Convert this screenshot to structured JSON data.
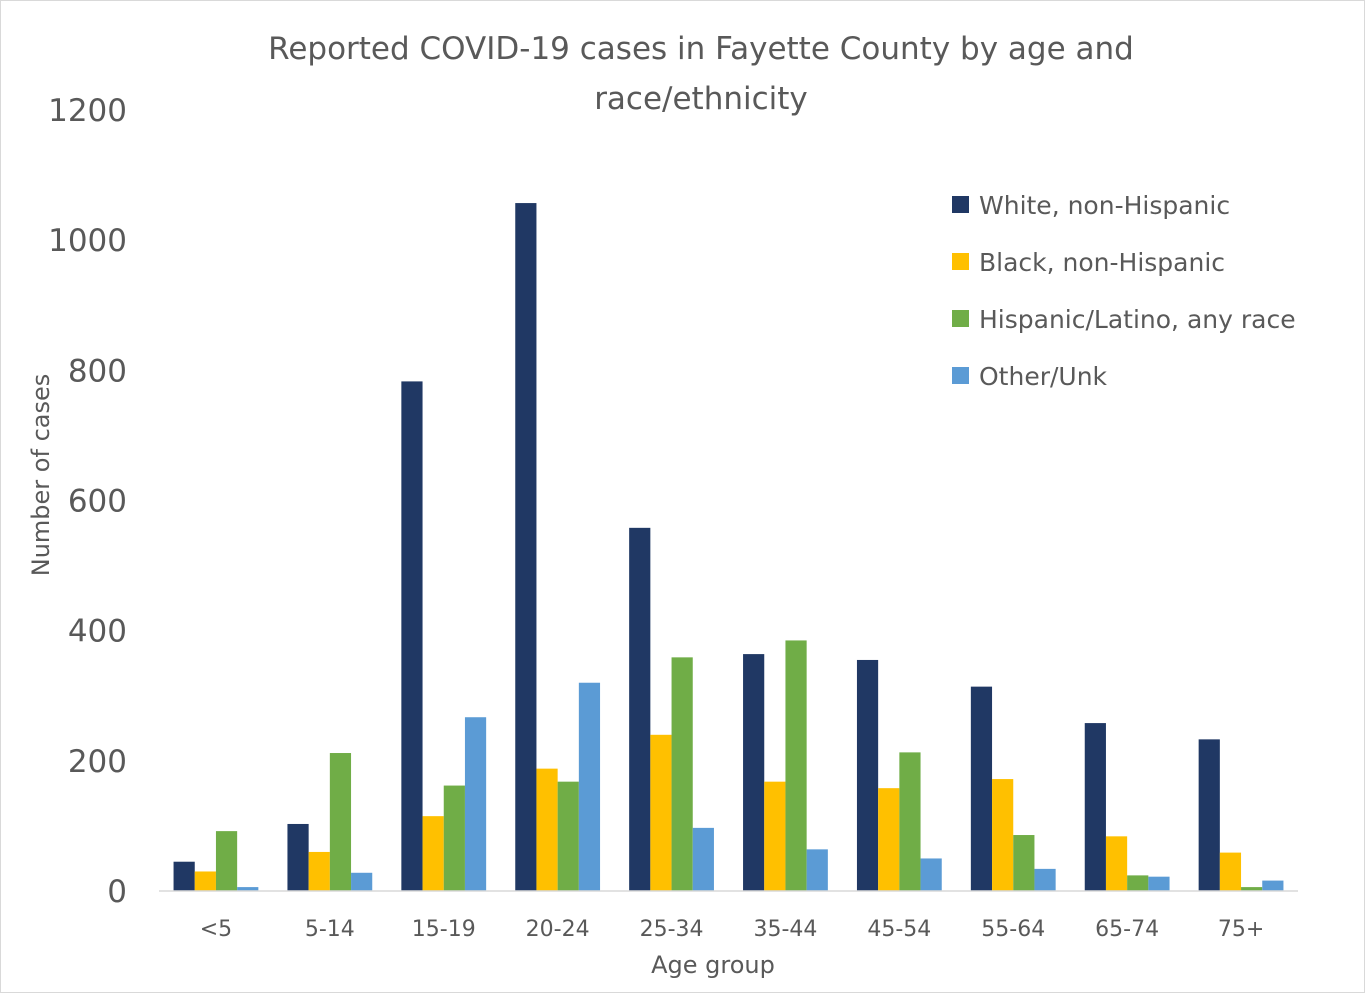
{
  "chart_data": {
    "type": "bar",
    "title_lines": [
      "Reported COVID-19 cases in Fayette County by age and",
      "race/ethnicity"
    ],
    "xlabel": "Age group",
    "ylabel": "Number of cases",
    "ylim": [
      0,
      1200
    ],
    "yticks": [
      "0",
      "200",
      "400",
      "600",
      "800",
      "1000",
      "1200"
    ],
    "grid": false,
    "legend_position": "top-right",
    "categories": [
      "<5",
      "5-14",
      "15-19",
      "20-24",
      "25-34",
      "35-44",
      "45-54",
      "55-64",
      "65-74",
      "75+"
    ],
    "series": [
      {
        "name": "White, non-Hispanic",
        "color": "#203864",
        "values": [
          45,
          103,
          783,
          1057,
          558,
          364,
          355,
          314,
          258,
          233
        ]
      },
      {
        "name": "Black, non-Hispanic",
        "color": "#ffc000",
        "values": [
          30,
          60,
          115,
          188,
          240,
          168,
          158,
          172,
          84,
          59
        ]
      },
      {
        "name": "Hispanic/Latino, any race",
        "color": "#70ad47",
        "values": [
          92,
          212,
          162,
          168,
          359,
          385,
          213,
          86,
          24,
          6
        ]
      },
      {
        "name": "Other/Unk",
        "color": "#5b9bd5",
        "values": [
          6,
          28,
          267,
          320,
          97,
          64,
          50,
          34,
          22,
          16
        ]
      }
    ]
  }
}
